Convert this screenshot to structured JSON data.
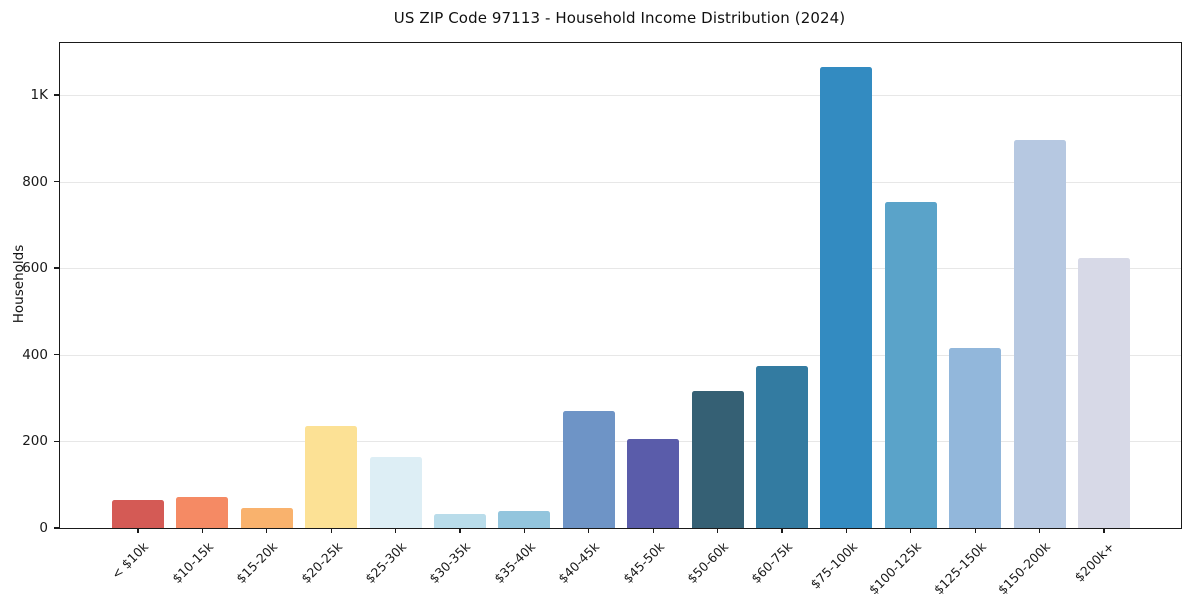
{
  "chart_data": {
    "type": "bar",
    "title": "US ZIP Code 97113 - Household Income Distribution (2024)",
    "ylabel": "Households",
    "xlabel": "",
    "categories": [
      "< $10k",
      "$10-15k",
      "$15-20k",
      "$20-25k",
      "$25-30k",
      "$30-35k",
      "$35-40k",
      "$40-45k",
      "$45-50k",
      "$50-60k",
      "$60-75k",
      "$75-100k",
      "$100-125k",
      "$125-150k",
      "$150-200k",
      "$200k+"
    ],
    "values": [
      65,
      72,
      47,
      236,
      165,
      32,
      40,
      270,
      205,
      316,
      374,
      1065,
      754,
      415,
      895,
      624
    ],
    "bar_colors": [
      "#d45a55",
      "#f58a64",
      "#f9b26d",
      "#fce195",
      "#ddeef5",
      "#b9dcea",
      "#93c5dd",
      "#6e94c6",
      "#5a5caa",
      "#356074",
      "#337ba1",
      "#338bc1",
      "#5aa3c9",
      "#92b7db",
      "#b6c8e1",
      "#d7d9e7"
    ],
    "ylim": [
      0,
      1120
    ],
    "yticks": [
      {
        "value": 0,
        "label": "0"
      },
      {
        "value": 200,
        "label": "200"
      },
      {
        "value": 400,
        "label": "400"
      },
      {
        "value": 600,
        "label": "600"
      },
      {
        "value": 800,
        "label": "800"
      },
      {
        "value": 1000,
        "label": "1K"
      }
    ],
    "grid": "horizontal gridlines at y ticks",
    "legend": "none",
    "style_colors": {
      "grid": "#e7e7e7",
      "spine": "#1a1a1a",
      "text": "#1a1a1a",
      "background": "#ffffff"
    }
  }
}
